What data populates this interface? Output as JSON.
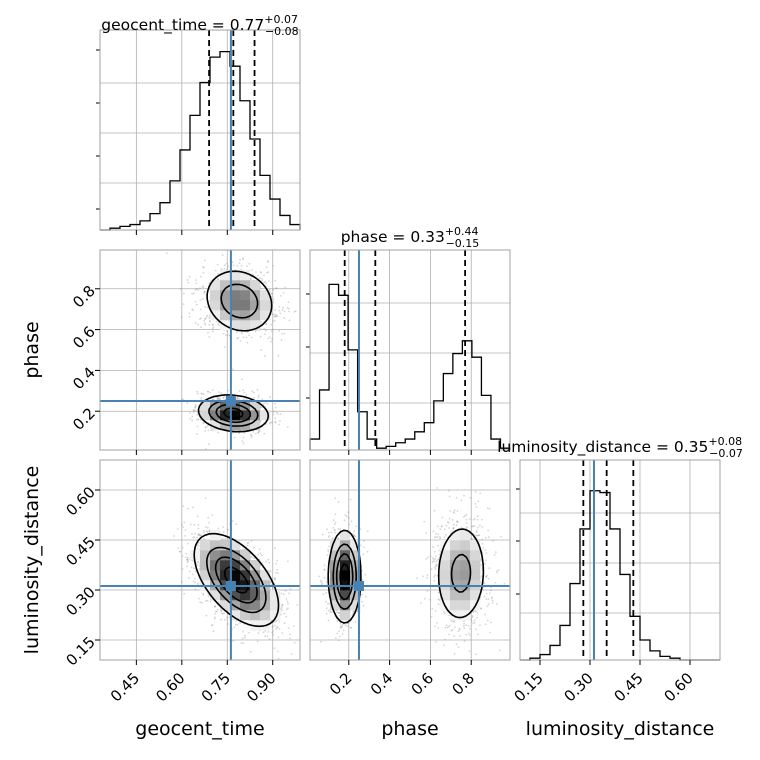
{
  "chart_data": {
    "type": "corner",
    "parameters": [
      {
        "name": "geocent_time",
        "label": "geocent_time",
        "median": "0.77",
        "plus": "+0.07",
        "minus": "−0.08",
        "range": [
          0.33,
          0.99
        ],
        "true_value": 0.762,
        "quantiles": [
          0.69,
          0.77,
          0.84
        ],
        "ticks": [
          0.45,
          0.6,
          0.75,
          0.9
        ],
        "tick_labels": [
          "0.45",
          "0.60",
          "0.75",
          "0.90"
        ]
      },
      {
        "name": "phase",
        "label": "phase",
        "median": "0.33",
        "plus": "+0.44",
        "minus": "−0.15",
        "range": [
          0.01,
          0.99
        ],
        "true_value": 0.25,
        "quantiles": [
          0.18,
          0.33,
          0.77
        ],
        "ticks": [
          0.2,
          0.4,
          0.6,
          0.8
        ],
        "tick_labels": [
          "0.2",
          "0.4",
          "0.6",
          "0.8"
        ]
      },
      {
        "name": "luminosity_distance",
        "label": "luminosity_distance",
        "median": "0.35",
        "plus": "+0.08",
        "minus": "−0.07",
        "range": [
          0.09,
          0.69
        ],
        "true_value": 0.312,
        "quantiles": [
          0.28,
          0.35,
          0.43
        ],
        "ticks": [
          0.15,
          0.3,
          0.45,
          0.6
        ],
        "tick_labels": [
          "0.15",
          "0.30",
          "0.45",
          "0.60"
        ]
      }
    ],
    "titles": [
      {
        "name": "geocent_time",
        "prefix": "geocent_time = 0.77",
        "plus": "+0.07",
        "minus": "−0.08"
      },
      {
        "name": "phase",
        "prefix": "phase = 0.33",
        "plus": "+0.44",
        "minus": "−0.15"
      },
      {
        "name": "luminosity_distance",
        "prefix": "luminosity_distance = 0.35",
        "plus": "+0.08",
        "minus": "−0.07"
      }
    ],
    "histograms": {
      "geocent_time": {
        "edges_range": [
          0.33,
          0.99
        ],
        "counts": [
          0,
          0.01,
          0.02,
          0.03,
          0.05,
          0.09,
          0.15,
          0.27,
          0.44,
          0.63,
          0.81,
          0.95,
          0.98,
          0.9,
          0.71,
          0.5,
          0.3,
          0.17,
          0.08,
          0.03
        ]
      },
      "phase": {
        "edges_range": [
          0.01,
          0.99
        ],
        "counts": [
          0.06,
          0.33,
          0.91,
          0.85,
          0.55,
          0.21,
          0.06,
          0.01,
          0.02,
          0.04,
          0.06,
          0.1,
          0.15,
          0.27,
          0.42,
          0.53,
          0.6,
          0.51,
          0.3,
          0.06,
          0.01
        ]
      },
      "luminosity_distance": {
        "edges_range": [
          0.09,
          0.69
        ],
        "counts": [
          0,
          0.01,
          0.03,
          0.08,
          0.19,
          0.42,
          0.72,
          0.93,
          0.92,
          0.72,
          0.47,
          0.24,
          0.11,
          0.05,
          0.02,
          0.01,
          0,
          0,
          0,
          0
        ]
      }
    },
    "contour_blobs": {
      "phase_vs_geocent_time": [
        {
          "cx": 0.79,
          "cy": 0.74,
          "sx": 0.062,
          "sy": 0.085,
          "rho": -0.15,
          "weight": 0.55
        },
        {
          "cx": 0.77,
          "cy": 0.19,
          "sx": 0.058,
          "sy": 0.045,
          "rho": -0.15,
          "weight": 0.45
        }
      ],
      "luminosity_distance_vs_geocent_time": [
        {
          "cx": 0.78,
          "cy": 0.33,
          "sx": 0.07,
          "sy": 0.07,
          "rho": -0.55,
          "weight": 1.0
        }
      ],
      "luminosity_distance_vs_phase": [
        {
          "cx": 0.18,
          "cy": 0.34,
          "sx": 0.04,
          "sy": 0.07,
          "rho": 0.0,
          "weight": 0.5
        },
        {
          "cx": 0.75,
          "cy": 0.35,
          "sx": 0.07,
          "sy": 0.085,
          "rho": 0.05,
          "weight": 0.5
        }
      ]
    },
    "grid": true,
    "colors": {
      "truth": "#4682b4",
      "line": "#000000",
      "points": "#8a8a8a",
      "grid": "#b0b0b0",
      "frame": "#a0a0a0"
    }
  }
}
